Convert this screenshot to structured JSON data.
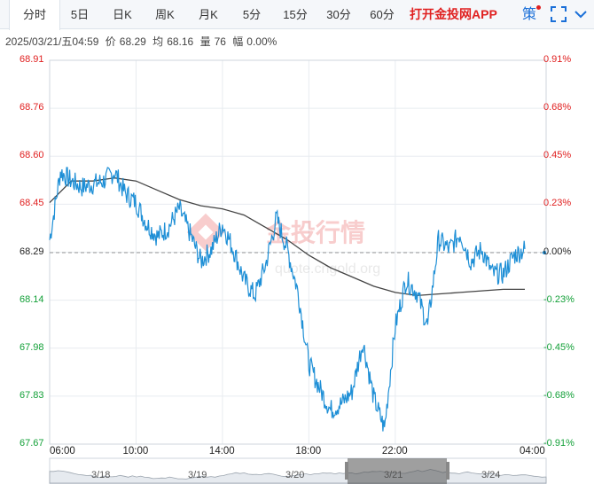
{
  "tabs": [
    {
      "label": "分时",
      "active": true
    },
    {
      "label": "5日"
    },
    {
      "label": "日K"
    },
    {
      "label": "周K"
    },
    {
      "label": "月K"
    },
    {
      "label": "5分"
    },
    {
      "label": "15分"
    },
    {
      "label": "30分"
    },
    {
      "label": "60分"
    }
  ],
  "toolbar": {
    "promo_label": "打开金投网APP",
    "strategy_label": "策",
    "fullscreen_icon": "fullscreen-icon",
    "collapse_icon": "collapse-icon"
  },
  "info": {
    "datetime": "2025/03/21/五04:59",
    "price_label": "价",
    "price": "68.29",
    "avg_label": "均",
    "avg": "68.16",
    "volume_label": "量",
    "volume": "76",
    "change_label": "幅",
    "change": "0.00%"
  },
  "watermark": {
    "text": "金投行情",
    "url": "quote.cngold.org"
  },
  "colors": {
    "price_line": "#1e8fd6",
    "avg_line": "#444444",
    "up": "#e02020",
    "down": "#13a038",
    "grid": "#e8ecf0"
  },
  "chart_data": {
    "type": "line",
    "x_ticks": [
      "06:00",
      "10:00",
      "14:00",
      "18:00",
      "22:00",
      "04:00"
    ],
    "y_ticks_left": [
      "68.91",
      "68.76",
      "68.60",
      "68.45",
      "68.29",
      "68.14",
      "67.98",
      "67.83",
      "67.67"
    ],
    "y_ticks_right": [
      "0.91%",
      "0.68%",
      "0.45%",
      "0.23%",
      "0.00%",
      "-0.23%",
      "-0.45%",
      "-0.68%",
      "-0.91%"
    ],
    "ylim": [
      67.67,
      68.91
    ],
    "reference_price": 68.29,
    "grid": true,
    "series": [
      {
        "kind": "price",
        "x": [
          "06:00",
          "06:30",
          "07:00",
          "07:30",
          "08:00",
          "08:30",
          "09:00",
          "09:30",
          "10:00",
          "10:30",
          "11:00",
          "11:30",
          "12:00",
          "12:30",
          "13:00",
          "13:30",
          "14:00",
          "14:30",
          "15:00",
          "15:30",
          "16:00",
          "16:30",
          "17:00",
          "17:30",
          "18:00",
          "18:30",
          "19:00",
          "19:30",
          "20:00",
          "20:30",
          "21:00",
          "21:30",
          "22:00",
          "22:30",
          "23:00",
          "23:30",
          "00:00",
          "00:30",
          "01:00",
          "01:30",
          "02:00",
          "02:30",
          "03:00",
          "03:30",
          "04:00"
        ],
        "values": [
          68.33,
          68.55,
          68.52,
          68.5,
          68.51,
          68.52,
          68.55,
          68.48,
          68.45,
          68.38,
          68.34,
          68.37,
          68.43,
          68.35,
          68.26,
          68.3,
          68.38,
          68.3,
          68.2,
          68.15,
          68.25,
          68.4,
          68.3,
          68.16,
          67.93,
          67.85,
          67.78,
          67.8,
          67.84,
          68.0,
          67.82,
          67.72,
          68.05,
          68.2,
          68.16,
          68.05,
          68.33,
          68.3,
          68.35,
          68.26,
          68.3,
          68.22,
          68.22,
          68.28,
          68.3
        ]
      },
      {
        "kind": "average",
        "x": [
          "06:00",
          "07:00",
          "08:00",
          "09:00",
          "10:00",
          "11:00",
          "12:00",
          "13:00",
          "14:00",
          "15:00",
          "16:00",
          "17:00",
          "18:00",
          "19:00",
          "20:00",
          "21:00",
          "22:00",
          "23:00",
          "00:00",
          "01:00",
          "02:00",
          "03:00",
          "04:00"
        ],
        "values": [
          68.45,
          68.52,
          68.52,
          68.53,
          68.52,
          68.49,
          68.46,
          68.44,
          68.43,
          68.41,
          68.37,
          68.33,
          68.28,
          68.24,
          68.21,
          68.18,
          68.16,
          68.15,
          68.155,
          68.16,
          68.165,
          68.17,
          68.17
        ]
      }
    ],
    "navigator": {
      "labels": [
        "3/18",
        "3/19",
        "3/20",
        "3/21",
        "3/24"
      ],
      "selected": "3/21"
    }
  }
}
